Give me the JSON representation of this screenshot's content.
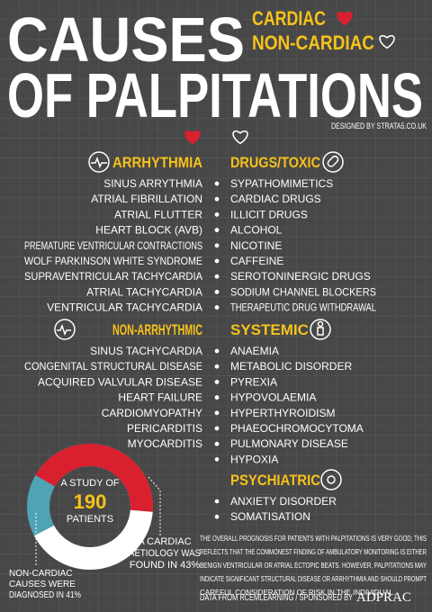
{
  "header": {
    "title_line1": "CAUSES",
    "title_line2": "OF PALPITATIONS",
    "legend": [
      {
        "label": "CARDIAC",
        "color": "#d9202f"
      },
      {
        "label": "NON-CARDIAC",
        "color": "#ffffff"
      }
    ],
    "credit": "DESIGNED BY STRATA5.CO.UK"
  },
  "sections": [
    {
      "title": "ARRHYTHMIA",
      "items": [
        "SINUS ARRYTHMIA",
        "ATRIAL FIBRILLATION",
        "ATRIAL FLUTTER",
        "HEART BLOCK (AVB)",
        "PREMATURE VENTRICULAR CONTRACTIONS",
        "WOLF PARKINSON WHITE SYNDROME",
        "SUPRAVENTRICULAR TACHYCARDIA",
        "ATRIAL TACHYCARDIA",
        "VENTRICULAR TACHYCARDIA"
      ]
    },
    {
      "title": "DRUGS/TOXIC",
      "items": [
        "SYPATHOMIMETICS",
        "CARDIAC DRUGS",
        "ILLICIT DRUGS",
        "ALCOHOL",
        "NICOTINE",
        "CAFFEINE",
        "SEROTONINERGIC DRUGS",
        "SODIUM CHANNEL BLOCKERS",
        "THERAPEUTIC DRUG WITHDRAWAL"
      ]
    },
    {
      "title": "NON-ARRHYTHMIC",
      "items": [
        "SINUS TACHYCARDIA",
        "CONGENITAL STRUCTURAL DISEASE",
        "ACQUIRED VALVULAR DISEASE",
        "HEART FAILURE",
        "CARDIOMYOPATHY",
        "PERICARDITIS",
        "MYOCARDITIS"
      ]
    },
    {
      "title": "SYSTEMIC",
      "items": [
        "ANAEMIA",
        "METABOLIC DISORDER",
        "PYREXIA",
        "HYPOVOLAEMIA",
        "HYPERTHYROIDISM",
        "PHAEOCHROMOCYTOMA",
        "PULMONARY DISEASE",
        "HYPOXIA"
      ]
    },
    {
      "title": "PSYCHIATRIC",
      "items": [
        "ANXIETY DISORDER",
        "SOMATISATION"
      ]
    }
  ],
  "study": {
    "center": [
      "A STUDY OF",
      "190",
      "PATIENTS"
    ],
    "segments": [
      {
        "value": 43,
        "color": "#d9202f",
        "label": [
          "A CARDIAC",
          "AETIOLOGY WAS",
          "FOUND IN 43%"
        ]
      },
      {
        "value": 41,
        "color": "#ffffff",
        "label": [
          "NON-CARDIAC",
          "CAUSES WERE",
          "DIAGNOSED IN 41%"
        ]
      }
    ]
  },
  "footer": {
    "paragraph": [
      "THE OVERALL PROGNOSIS FOR PATIENTS WITH PALPITATIONS IS VERY GOOD; THIS",
      "REFLECTS THAT THE COMMONEST FINDING OF AMBULATORY MONITORING IS EITHER",
      "BENIGN VENTRICULAR OR ATRIAL ECTOPIC BEATS. HOWEVER, PALPITATIONS MAY",
      "INDICATE SIGNIFICANT STRUCTURAL DISEASE OR ARRHYTHMIA AND SHOULD PROMPT",
      "CAREFUL CONSIDERATION OF RISK IN THE INDIVIDUAL."
    ],
    "source": "DATA FROM RCEMLEARNING / SPONSORED BY",
    "sponsor": "ADPRAC"
  }
}
